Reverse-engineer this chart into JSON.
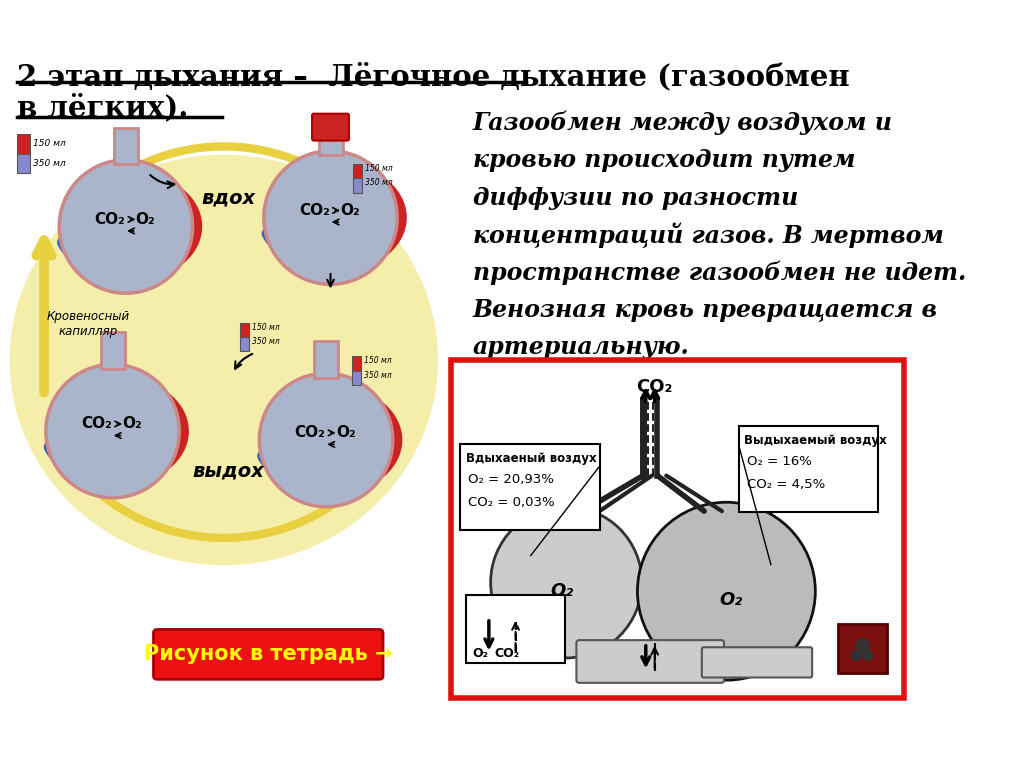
{
  "title_line1": "2 этап дыхания –  Лёгочное дыхание (газообмен",
  "title_line2": "в лёгких).",
  "bg_color": "#ffffff",
  "lung_color": "#aab5cc",
  "lung_outline": "#888888",
  "capillary_blue": "#3366bb",
  "capillary_red": "#cc2222",
  "arrow_yellow": "#e8d040",
  "circle_bg": "#f5eeaa",
  "main_text_lines": [
    "Газообмен между воздухом и",
    "кровью происходит путем",
    "диффузии по разности",
    "концентраций газов. В мертвом",
    "пространстве газообмен не идет.",
    "Венозная кровь превращается в",
    "артериальную."
  ],
  "note_text": "Рисунок в тетрадь →",
  "vdoh": "вдох",
  "vydoh": "выдох",
  "cap_label": "Кровеносный\nкапилляр",
  "inhaled_label": "Вдыхаеный воздух",
  "inhaled_o2": "O₂ = 20,93%",
  "inhaled_co2": "CO₂ = 0,03%",
  "exhaled_label": "Выдыхаемый воздух",
  "exhaled_o2": "O₂ = 16%",
  "exhaled_co2": "CO₂ = 4,5%",
  "co2_label": "CO₂",
  "o2_label": "O₂",
  "o2co2_label": "O₂  CO₂"
}
